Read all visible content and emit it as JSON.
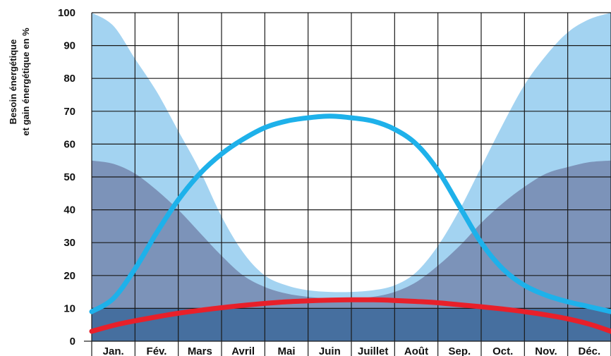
{
  "chart_data": {
    "type": "area",
    "title": "",
    "xlabel": "",
    "ylabel_lines": [
      "Besoin énergétique",
      "et gain énergétique en %"
    ],
    "categories": [
      "Jan.",
      "Fév.",
      "Mars",
      "Avril",
      "Mai",
      "Juin",
      "Juillet",
      "Août",
      "Sep.",
      "Oct.",
      "Nov.",
      "Déc."
    ],
    "yticks": [
      "0",
      "10",
      "20",
      "30",
      "40",
      "50",
      "60",
      "70",
      "80",
      "90",
      "100"
    ],
    "ylim": [
      0,
      100
    ],
    "grid": true,
    "legend": "none",
    "series": [
      {
        "kind": "area",
        "color": "#a3d3f1",
        "x": [
          0,
          0.5,
          1,
          1.5,
          2,
          2.5,
          3,
          3.5,
          4,
          4.5,
          5,
          5.5,
          6,
          6.5,
          7,
          7.5,
          8,
          8.5,
          9,
          9.5,
          10,
          10.5,
          11,
          11.5,
          12
        ],
        "values": [
          100,
          96,
          86,
          76,
          64,
          52,
          38,
          27,
          20,
          17,
          15.5,
          15,
          15,
          15.5,
          17,
          21,
          29,
          40,
          53,
          66,
          78,
          87,
          94,
          98,
          100
        ]
      },
      {
        "kind": "area",
        "color": "#7c93b9",
        "x": [
          0,
          0.5,
          1,
          1.5,
          2,
          2.5,
          3,
          3.5,
          4,
          4.5,
          5,
          5.5,
          6,
          6.5,
          7,
          7.5,
          8,
          8.5,
          9,
          9.5,
          10,
          10.5,
          11,
          11.5,
          12
        ],
        "values": [
          55,
          54,
          51,
          46,
          40,
          33,
          26,
          20,
          16.5,
          14.5,
          13.5,
          13,
          13,
          13.5,
          15,
          18,
          23,
          29,
          36,
          42,
          47,
          51,
          53,
          54.5,
          55
        ]
      },
      {
        "kind": "area",
        "color": "#466f9f",
        "x": [
          0,
          12
        ],
        "values": [
          10,
          10
        ]
      },
      {
        "kind": "line",
        "color": "#1eb1ea",
        "x": [
          0,
          0.5,
          1,
          1.5,
          2,
          2.5,
          3,
          3.5,
          4,
          4.5,
          5,
          5.5,
          6,
          6.5,
          7,
          7.5,
          8,
          8.5,
          9,
          9.5,
          10,
          10.5,
          11,
          11.5,
          12
        ],
        "values": [
          9,
          13,
          22,
          33,
          43,
          51,
          57,
          61.5,
          65,
          67,
          68,
          68.5,
          68,
          67,
          64.5,
          60,
          52,
          41,
          30,
          22,
          17,
          14,
          12,
          10.5,
          9
        ]
      },
      {
        "kind": "line",
        "color": "#e8202a",
        "x": [
          0,
          0.5,
          1,
          1.5,
          2,
          2.5,
          3,
          3.5,
          4,
          4.5,
          5,
          5.5,
          6,
          6.5,
          7,
          7.5,
          8,
          8.5,
          9,
          9.5,
          10,
          10.5,
          11,
          11.5,
          12
        ],
        "values": [
          3,
          4.8,
          6.2,
          7.4,
          8.5,
          9.4,
          10.2,
          10.9,
          11.5,
          12,
          12.3,
          12.5,
          12.6,
          12.6,
          12.4,
          12.1,
          11.7,
          11.1,
          10.5,
          9.8,
          9,
          8,
          6.8,
          5.2,
          3
        ]
      }
    ]
  }
}
